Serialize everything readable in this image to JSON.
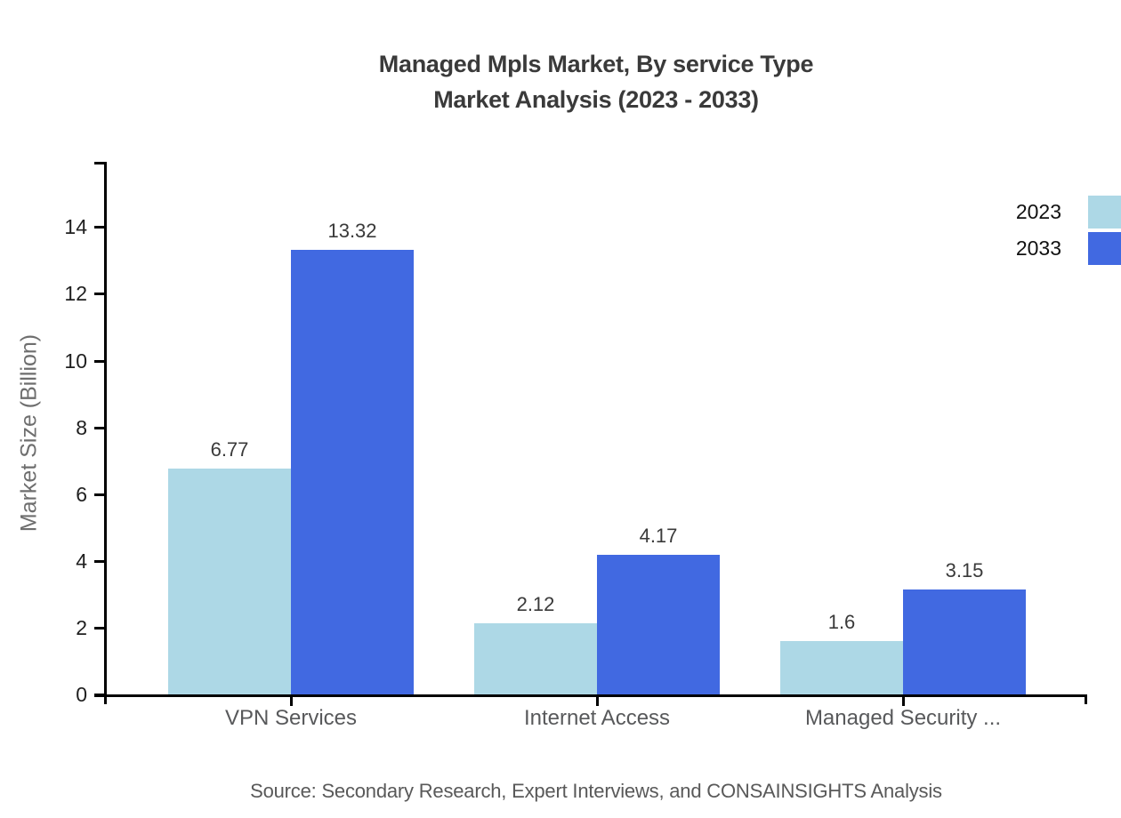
{
  "title": {
    "line1": "Managed Mpls Market, By service Type",
    "line2": "Market Analysis (2023 - 2033)"
  },
  "y_axis_label": "Market Size (Billion)",
  "source": "Source: Secondary Research, Expert Interviews, and CONSAINSIGHTS Analysis",
  "colors": {
    "series_2023": "#ADD8E6",
    "series_2033": "#4169E1",
    "axis": "#000000",
    "title_text": "#3a3a3a",
    "category_text": "#58595b",
    "value_text": "#3a3a3a",
    "tick_text": "#1f1f1f",
    "legend_text": "#111111",
    "source_text": "#595959"
  },
  "chart_data": {
    "type": "bar",
    "title": "Managed Mpls Market, By service Type — Market Analysis (2023 - 2033)",
    "categories": [
      "VPN Services",
      "Internet Access",
      "Managed Security ..."
    ],
    "series": [
      {
        "name": "2023",
        "color": "#ADD8E6",
        "values": [
          6.77,
          2.12,
          1.6
        ]
      },
      {
        "name": "2033",
        "color": "#4169E1",
        "values": [
          13.32,
          4.17,
          3.15
        ]
      }
    ],
    "value_labels": [
      "6.77",
      "13.32",
      "2.12",
      "4.17",
      "1.6",
      "3.15"
    ],
    "xlabel": "",
    "ylabel": "Market Size (Billion)",
    "ylim": [
      0,
      16
    ],
    "yticks": [
      0,
      2,
      4,
      6,
      8,
      10,
      12,
      14
    ],
    "grid": false,
    "legend_position": "top-right",
    "legend_entries": [
      "2023",
      "2033"
    ]
  }
}
